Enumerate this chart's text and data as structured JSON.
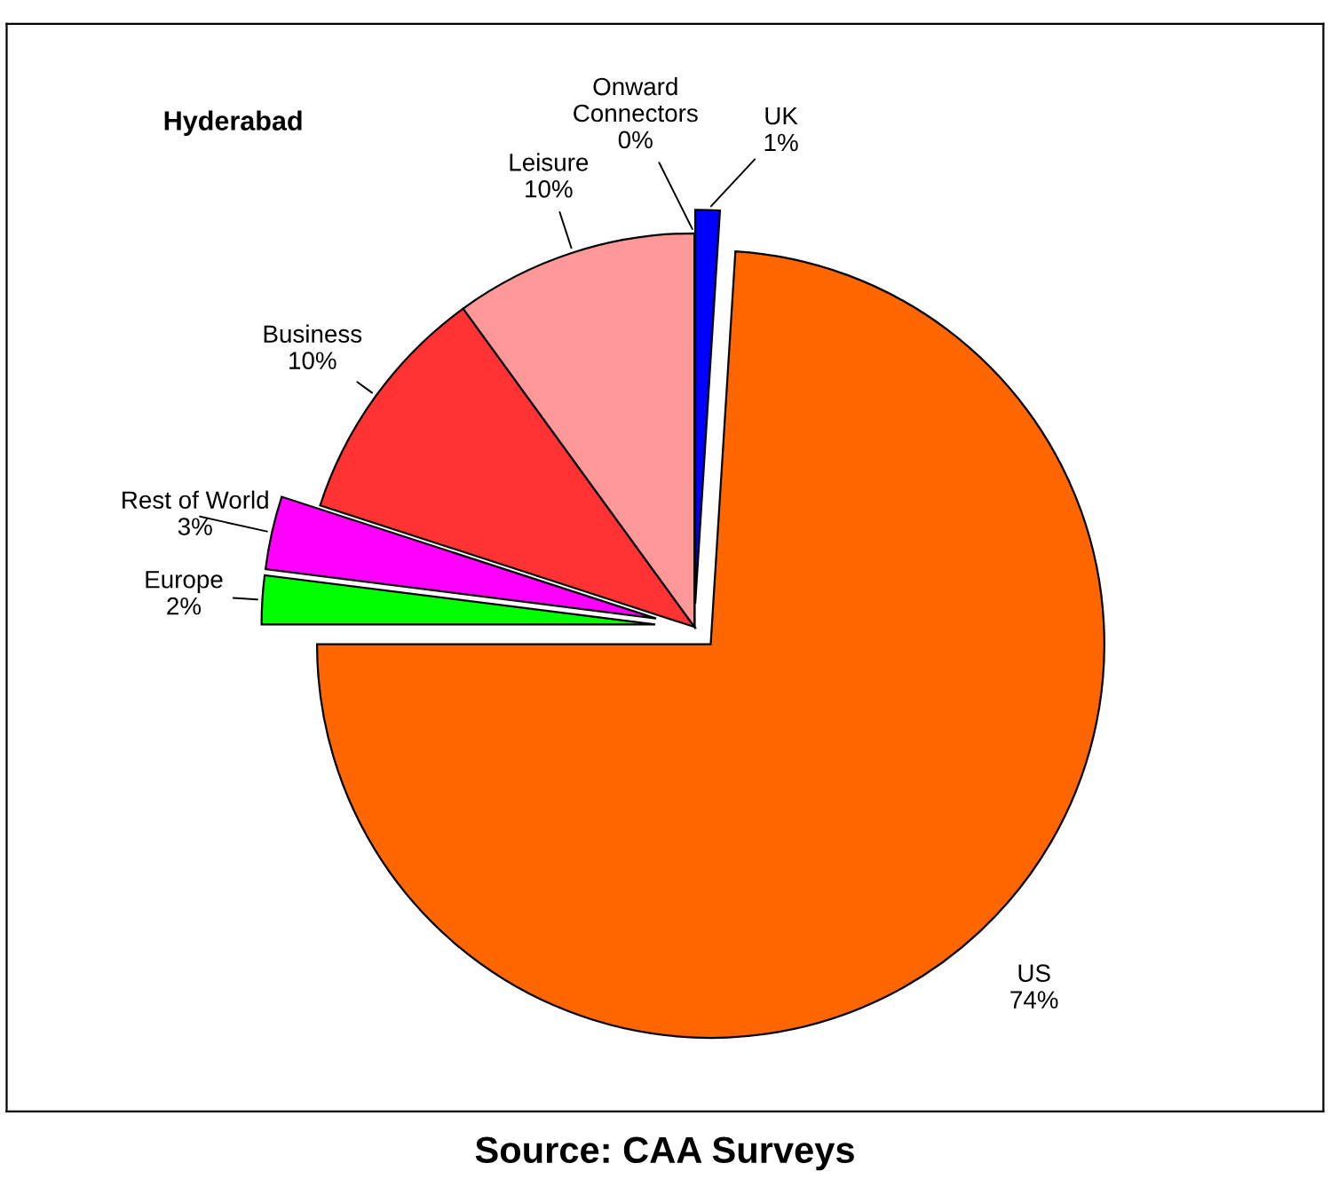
{
  "chart_data": {
    "type": "pie",
    "title": "Hyderabad",
    "categories": [
      "UK",
      "US",
      "Europe",
      "Rest of World",
      "Business",
      "Leisure",
      "Onward\nConnectors"
    ],
    "values": [
      1,
      74,
      2,
      3,
      10,
      10,
      0
    ],
    "value_labels": [
      "1%",
      "74%",
      "2%",
      "3%",
      "10%",
      "10%",
      "0%"
    ],
    "colors": [
      "#0000ff",
      "#ff6600",
      "#00ff00",
      "#ff00ff",
      "#ff3333",
      "#ff9999",
      "#ffffff"
    ],
    "annotations": [
      "Source: CAA Surveys"
    ]
  }
}
